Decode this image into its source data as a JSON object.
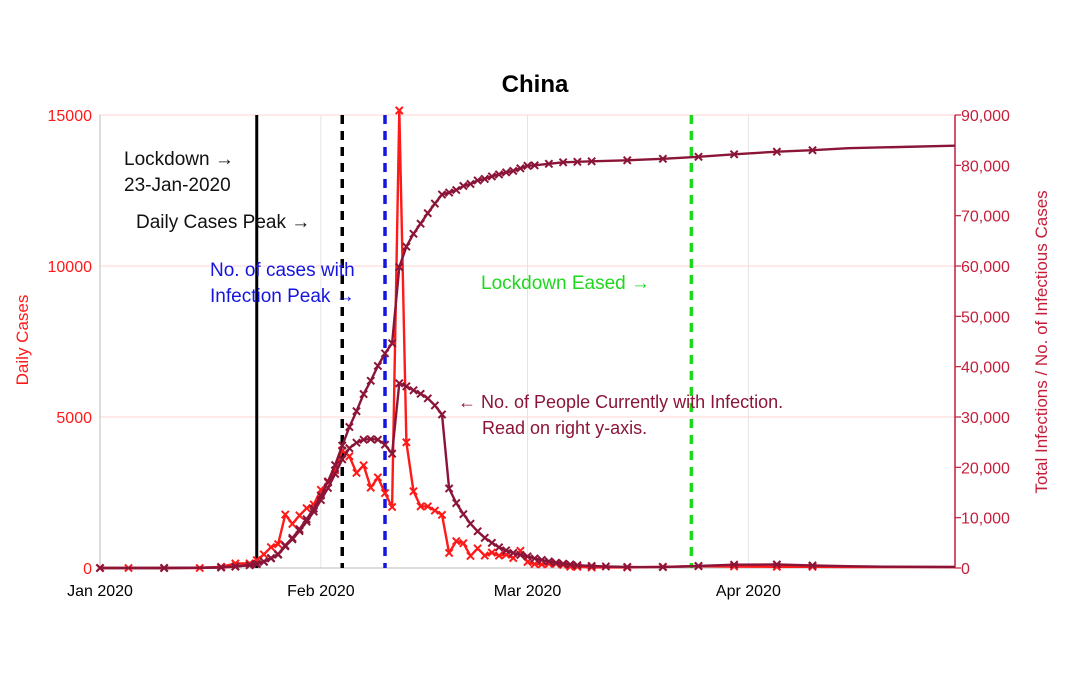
{
  "chart_data": {
    "type": "line",
    "title": "China",
    "ylabel": "Daily Cases",
    "y2label": "Total Infections / No. of Infectious Cases",
    "ylim": [
      0,
      15000
    ],
    "y2lim": [
      0,
      90000
    ],
    "xlim": [
      "2020-01-01",
      "2020-04-30"
    ],
    "x_ticks": [
      {
        "date": "2020-01-01",
        "label": "Jan 2020"
      },
      {
        "date": "2020-02-01",
        "label": "Feb 2020"
      },
      {
        "date": "2020-03-01",
        "label": "Mar 2020"
      },
      {
        "date": "2020-04-01",
        "label": "Apr 2020"
      }
    ],
    "y_ticks": [
      {
        "value": 0,
        "label": "0"
      },
      {
        "value": 5000,
        "label": "5000"
      },
      {
        "value": 10000,
        "label": "10000"
      },
      {
        "value": 15000,
        "label": "15000"
      }
    ],
    "y2_ticks": [
      {
        "value": 0,
        "label": "0"
      },
      {
        "value": 10000,
        "label": "10,000"
      },
      {
        "value": 20000,
        "label": "20,000"
      },
      {
        "value": 30000,
        "label": "30,000"
      },
      {
        "value": 40000,
        "label": "40,000"
      },
      {
        "value": 50000,
        "label": "50,000"
      },
      {
        "value": 60000,
        "label": "60,000"
      },
      {
        "value": 70000,
        "label": "70,000"
      },
      {
        "value": 80000,
        "label": "80,000"
      },
      {
        "value": 90000,
        "label": "90,000"
      }
    ],
    "grid": true,
    "series": [
      {
        "axis": "left",
        "color": "#ff1a1a",
        "points": [
          [
            "2020-01-01",
            0
          ],
          [
            "2020-01-05",
            0
          ],
          [
            "2020-01-10",
            0
          ],
          [
            "2020-01-15",
            0
          ],
          [
            "2020-01-18",
            40
          ],
          [
            "2020-01-20",
            150
          ],
          [
            "2020-01-22",
            150
          ],
          [
            "2020-01-23",
            260
          ],
          [
            "2020-01-24",
            450
          ],
          [
            "2020-01-25",
            690
          ],
          [
            "2020-01-26",
            790
          ],
          [
            "2020-01-27",
            1770
          ],
          [
            "2020-01-28",
            1460
          ],
          [
            "2020-01-29",
            1740
          ],
          [
            "2020-01-30",
            1980
          ],
          [
            "2020-01-31",
            2100
          ],
          [
            "2020-02-01",
            2590
          ],
          [
            "2020-02-02",
            2830
          ],
          [
            "2020-02-03",
            3240
          ],
          [
            "2020-02-04",
            3890
          ],
          [
            "2020-02-05",
            3700
          ],
          [
            "2020-02-06",
            3150
          ],
          [
            "2020-02-07",
            3400
          ],
          [
            "2020-02-08",
            2660
          ],
          [
            "2020-02-09",
            3000
          ],
          [
            "2020-02-10",
            2480
          ],
          [
            "2020-02-11",
            2020
          ],
          [
            "2020-02-12",
            15150
          ],
          [
            "2020-02-13",
            4160
          ],
          [
            "2020-02-14",
            2540
          ],
          [
            "2020-02-15",
            2040
          ],
          [
            "2020-02-16",
            2040
          ],
          [
            "2020-02-17",
            1900
          ],
          [
            "2020-02-18",
            1760
          ],
          [
            "2020-02-19",
            500
          ],
          [
            "2020-02-20",
            890
          ],
          [
            "2020-02-21",
            820
          ],
          [
            "2020-02-22",
            400
          ],
          [
            "2020-02-23",
            650
          ],
          [
            "2020-02-24",
            410
          ],
          [
            "2020-02-25",
            510
          ],
          [
            "2020-02-26",
            410
          ],
          [
            "2020-02-27",
            440
          ],
          [
            "2020-02-28",
            330
          ],
          [
            "2020-02-29",
            570
          ],
          [
            "2020-03-01",
            200
          ],
          [
            "2020-03-02",
            130
          ],
          [
            "2020-03-03",
            120
          ],
          [
            "2020-03-04",
            140
          ],
          [
            "2020-03-05",
            140
          ],
          [
            "2020-03-06",
            100
          ],
          [
            "2020-03-07",
            45
          ],
          [
            "2020-03-08",
            40
          ],
          [
            "2020-03-10",
            20
          ],
          [
            "2020-03-15",
            20
          ],
          [
            "2020-03-20",
            40
          ],
          [
            "2020-03-25",
            60
          ],
          [
            "2020-03-30",
            50
          ],
          [
            "2020-04-05",
            40
          ],
          [
            "2020-04-10",
            40
          ],
          [
            "2020-04-15",
            30
          ],
          [
            "2020-04-30",
            30
          ]
        ]
      },
      {
        "axis": "right",
        "color": "#8b1538",
        "points": [
          [
            "2020-01-01",
            0
          ],
          [
            "2020-01-10",
            0
          ],
          [
            "2020-01-18",
            100
          ],
          [
            "2020-01-20",
            290
          ],
          [
            "2020-01-22",
            570
          ],
          [
            "2020-01-23",
            830
          ],
          [
            "2020-01-24",
            1290
          ],
          [
            "2020-01-25",
            1980
          ],
          [
            "2020-01-26",
            2740
          ],
          [
            "2020-01-27",
            4510
          ],
          [
            "2020-01-28",
            5970
          ],
          [
            "2020-01-29",
            7710
          ],
          [
            "2020-01-30",
            9690
          ],
          [
            "2020-01-31",
            11790
          ],
          [
            "2020-02-01",
            14380
          ],
          [
            "2020-02-02",
            17200
          ],
          [
            "2020-02-03",
            20440
          ],
          [
            "2020-02-04",
            24320
          ],
          [
            "2020-02-05",
            28020
          ],
          [
            "2020-02-06",
            31160
          ],
          [
            "2020-02-07",
            34550
          ],
          [
            "2020-02-08",
            37200
          ],
          [
            "2020-02-09",
            40150
          ],
          [
            "2020-02-10",
            42640
          ],
          [
            "2020-02-11",
            44650
          ],
          [
            "2020-02-12",
            59800
          ],
          [
            "2020-02-13",
            63850
          ],
          [
            "2020-02-14",
            66400
          ],
          [
            "2020-02-15",
            68400
          ],
          [
            "2020-02-16",
            70500
          ],
          [
            "2020-02-17",
            72400
          ],
          [
            "2020-02-18",
            74200
          ],
          [
            "2020-02-19",
            74600
          ],
          [
            "2020-02-20",
            75100
          ],
          [
            "2020-02-21",
            75900
          ],
          [
            "2020-02-22",
            76300
          ],
          [
            "2020-02-23",
            77000
          ],
          [
            "2020-02-24",
            77300
          ],
          [
            "2020-02-25",
            77800
          ],
          [
            "2020-02-26",
            78200
          ],
          [
            "2020-02-27",
            78600
          ],
          [
            "2020-02-28",
            78900
          ],
          [
            "2020-02-29",
            79400
          ],
          [
            "2020-03-01",
            79900
          ],
          [
            "2020-03-02",
            80000
          ],
          [
            "2020-03-04",
            80300
          ],
          [
            "2020-03-06",
            80600
          ],
          [
            "2020-03-08",
            80700
          ],
          [
            "2020-03-10",
            80800
          ],
          [
            "2020-03-15",
            81000
          ],
          [
            "2020-03-20",
            81300
          ],
          [
            "2020-03-25",
            81700
          ],
          [
            "2020-03-30",
            82200
          ],
          [
            "2020-04-05",
            82700
          ],
          [
            "2020-04-10",
            83000
          ],
          [
            "2020-04-15",
            83400
          ],
          [
            "2020-04-30",
            83900
          ]
        ]
      },
      {
        "axis": "right",
        "color": "#8b1538",
        "label": "No. of People Currently with Infection. Read on right y-axis.",
        "label_lines": [
          "← No. of People Currently with Infection.",
          "Read on right y-axis."
        ],
        "points": [
          [
            "2020-01-01",
            0
          ],
          [
            "2020-01-10",
            0
          ],
          [
            "2020-01-18",
            100
          ],
          [
            "2020-01-20",
            280
          ],
          [
            "2020-01-22",
            550
          ],
          [
            "2020-01-23",
            790
          ],
          [
            "2020-01-24",
            1230
          ],
          [
            "2020-01-25",
            1900
          ],
          [
            "2020-01-26",
            2640
          ],
          [
            "2020-01-27",
            4320
          ],
          [
            "2020-01-28",
            5700
          ],
          [
            "2020-01-29",
            7340
          ],
          [
            "2020-01-30",
            9200
          ],
          [
            "2020-01-31",
            11200
          ],
          [
            "2020-02-01",
            13500
          ],
          [
            "2020-02-02",
            15900
          ],
          [
            "2020-02-03",
            18700
          ],
          [
            "2020-02-04",
            21600
          ],
          [
            "2020-02-05",
            23800
          ],
          [
            "2020-02-06",
            24900
          ],
          [
            "2020-02-07",
            25500
          ],
          [
            "2020-02-08",
            25600
          ],
          [
            "2020-02-09",
            25500
          ],
          [
            "2020-02-10",
            24500
          ],
          [
            "2020-02-11",
            22700
          ],
          [
            "2020-02-12",
            36700
          ],
          [
            "2020-02-13",
            36100
          ],
          [
            "2020-02-14",
            35300
          ],
          [
            "2020-02-15",
            34600
          ],
          [
            "2020-02-16",
            33700
          ],
          [
            "2020-02-17",
            32300
          ],
          [
            "2020-02-18",
            30500
          ],
          [
            "2020-02-19",
            15800
          ],
          [
            "2020-02-20",
            12900
          ],
          [
            "2020-02-21",
            10700
          ],
          [
            "2020-02-22",
            8800
          ],
          [
            "2020-02-23",
            7300
          ],
          [
            "2020-02-24",
            6000
          ],
          [
            "2020-02-25",
            5000
          ],
          [
            "2020-02-26",
            4100
          ],
          [
            "2020-02-27",
            3500
          ],
          [
            "2020-02-28",
            3000
          ],
          [
            "2020-02-29",
            2600
          ],
          [
            "2020-03-01",
            2300
          ],
          [
            "2020-03-02",
            1900
          ],
          [
            "2020-03-03",
            1600
          ],
          [
            "2020-03-04",
            1300
          ],
          [
            "2020-03-05",
            1050
          ],
          [
            "2020-03-06",
            850
          ],
          [
            "2020-03-07",
            700
          ],
          [
            "2020-03-08",
            560
          ],
          [
            "2020-03-10",
            400
          ],
          [
            "2020-03-12",
            300
          ],
          [
            "2020-03-15",
            200
          ],
          [
            "2020-03-20",
            180
          ],
          [
            "2020-03-25",
            400
          ],
          [
            "2020-03-30",
            650
          ],
          [
            "2020-04-05",
            700
          ],
          [
            "2020-04-10",
            500
          ],
          [
            "2020-04-15",
            350
          ],
          [
            "2020-04-20",
            250
          ],
          [
            "2020-04-30",
            200
          ]
        ]
      }
    ],
    "vlines": [
      {
        "date": "2020-01-23",
        "style": "solid",
        "color": "#000000",
        "label_lines": [
          "Lockdown →",
          "23-Jan-2020"
        ]
      },
      {
        "date": "2020-02-04",
        "style": "dashed",
        "color": "#000000",
        "label_lines": [
          "Daily Cases Peak →"
        ]
      },
      {
        "date": "2020-02-10",
        "style": "dashed",
        "color": "#1515e0",
        "label_lines": [
          "No. of cases with",
          "Infection Peak →"
        ]
      },
      {
        "date": "2020-03-24",
        "style": "dashed",
        "color": "#1ed81e",
        "label_lines": [
          "Lockdown Eased →"
        ]
      }
    ]
  }
}
